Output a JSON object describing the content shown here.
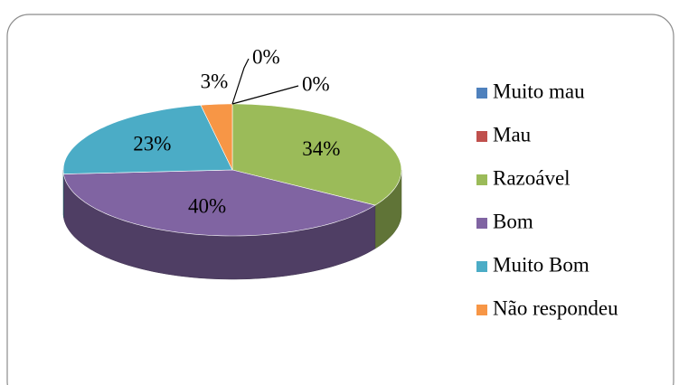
{
  "chart_data": {
    "type": "pie",
    "categories": [
      "Muito mau",
      "Mau",
      "Razoável",
      "Bom",
      "Muito Bom",
      "Não respondeu"
    ],
    "values": [
      0,
      0,
      34,
      40,
      23,
      3
    ],
    "value_labels": [
      "0%",
      "0%",
      "34%",
      "40%",
      "23%",
      "3%"
    ],
    "colors": [
      "#4f81bd",
      "#c0504d",
      "#9bbb59",
      "#8064a2",
      "#4bacc6",
      "#f79646"
    ],
    "legend": "right"
  }
}
